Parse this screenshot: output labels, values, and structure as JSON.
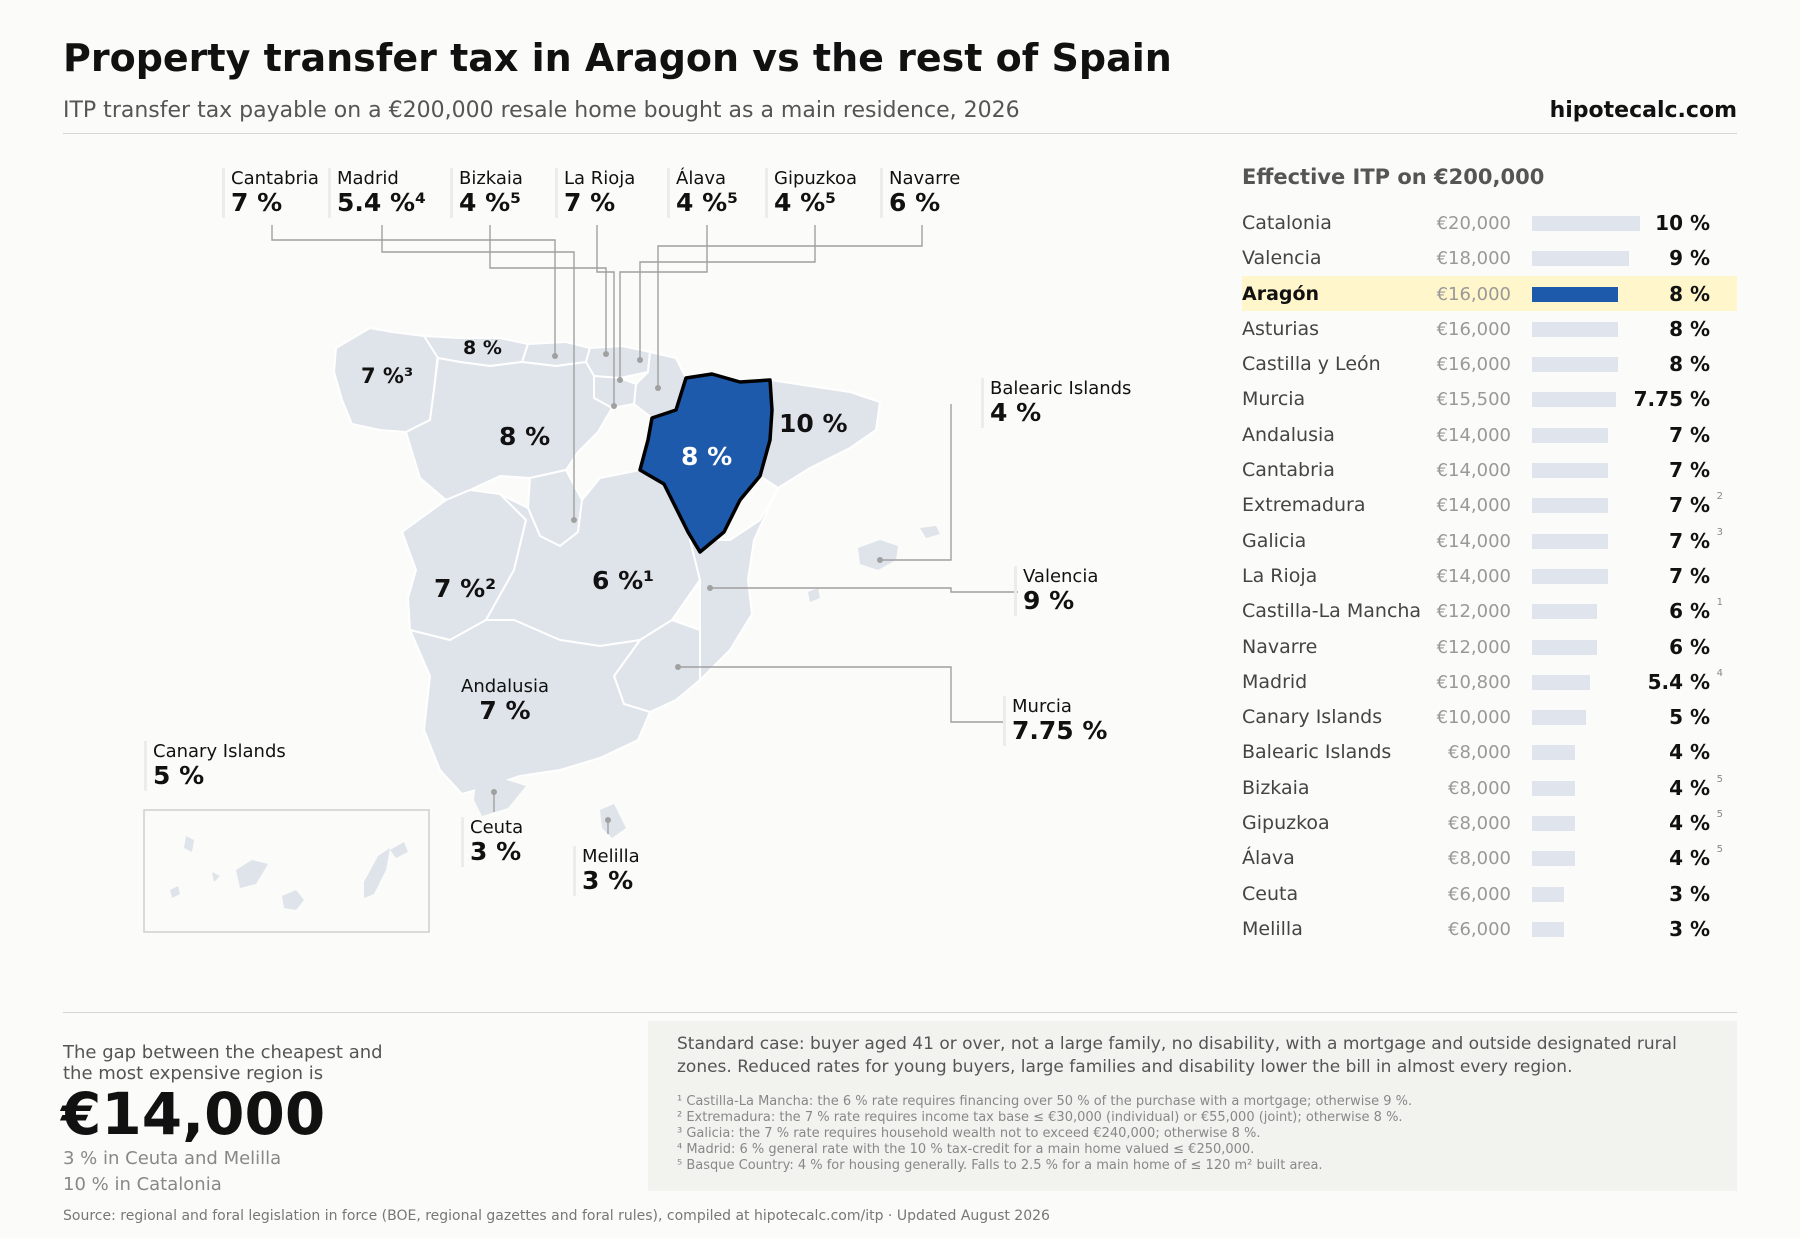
{
  "header": {
    "title": "Property transfer tax in Aragon vs the rest of Spain",
    "subtitle": "ITP transfer tax payable on a €200,000 resale home bought as a main residence, 2026",
    "brand": "hipotecalc.com"
  },
  "colors": {
    "region_fill": "#dfe3ea",
    "highlight_fill": "#1e5aab",
    "highlight_row": "#fff6cc",
    "bar": "#e0e4ec"
  },
  "map": {
    "top_callouts": [
      {
        "name": "Cantabria",
        "value": "7 %"
      },
      {
        "name": "Madrid",
        "value": "5.4 %⁴"
      },
      {
        "name": "Bizkaia",
        "value": "4 %⁵"
      },
      {
        "name": "La Rioja",
        "value": "7 %"
      },
      {
        "name": "Álava",
        "value": "4 %⁵"
      },
      {
        "name": "Gipuzkoa",
        "value": "4 %⁵"
      },
      {
        "name": "Navarre",
        "value": "6 %"
      }
    ],
    "side_callouts": {
      "balearic": {
        "name": "Balearic Islands",
        "value": "4 %"
      },
      "valencia": {
        "name": "Valencia",
        "value": "9 %"
      },
      "murcia": {
        "name": "Murcia",
        "value": "7.75 %"
      },
      "andalusia": {
        "name": "Andalusia",
        "value": "7 %"
      },
      "canary": {
        "name": "Canary Islands",
        "value": "5 %"
      },
      "ceuta": {
        "name": "Ceuta",
        "value": "3 %"
      },
      "melilla": {
        "name": "Melilla",
        "value": "3 %"
      }
    },
    "inline_labels": {
      "galicia": "7 %³",
      "asturias": "8 %",
      "castilla_leon": "8 %",
      "aragon": "8 %",
      "catalonia": "10 %",
      "extremadura": "7 %²",
      "castilla_la_mancha": "6 %¹"
    }
  },
  "list": {
    "title": "Effective ITP on €200,000",
    "max_rate": 10,
    "rows": [
      {
        "name": "Catalonia",
        "amount": "€20,000",
        "pct": "10 %",
        "rate": 10,
        "fn": ""
      },
      {
        "name": "Valencia",
        "amount": "€18,000",
        "pct": "9 %",
        "rate": 9,
        "fn": ""
      },
      {
        "name": "Aragón",
        "amount": "€16,000",
        "pct": "8 %",
        "rate": 8,
        "fn": "",
        "highlight": true
      },
      {
        "name": "Asturias",
        "amount": "€16,000",
        "pct": "8 %",
        "rate": 8,
        "fn": ""
      },
      {
        "name": "Castilla y León",
        "amount": "€16,000",
        "pct": "8 %",
        "rate": 8,
        "fn": ""
      },
      {
        "name": "Murcia",
        "amount": "€15,500",
        "pct": "7.75 %",
        "rate": 7.75,
        "fn": ""
      },
      {
        "name": "Andalusia",
        "amount": "€14,000",
        "pct": "7 %",
        "rate": 7,
        "fn": ""
      },
      {
        "name": "Cantabria",
        "amount": "€14,000",
        "pct": "7 %",
        "rate": 7,
        "fn": ""
      },
      {
        "name": "Extremadura",
        "amount": "€14,000",
        "pct": "7 %",
        "rate": 7,
        "fn": "2"
      },
      {
        "name": "Galicia",
        "amount": "€14,000",
        "pct": "7 %",
        "rate": 7,
        "fn": "3"
      },
      {
        "name": "La Rioja",
        "amount": "€14,000",
        "pct": "7 %",
        "rate": 7,
        "fn": ""
      },
      {
        "name": "Castilla-La Mancha",
        "amount": "€12,000",
        "pct": "6 %",
        "rate": 6,
        "fn": "1"
      },
      {
        "name": "Navarre",
        "amount": "€12,000",
        "pct": "6 %",
        "rate": 6,
        "fn": ""
      },
      {
        "name": "Madrid",
        "amount": "€10,800",
        "pct": "5.4 %",
        "rate": 5.4,
        "fn": "4"
      },
      {
        "name": "Canary Islands",
        "amount": "€10,000",
        "pct": "5 %",
        "rate": 5,
        "fn": ""
      },
      {
        "name": "Balearic Islands",
        "amount": "€8,000",
        "pct": "4 %",
        "rate": 4,
        "fn": ""
      },
      {
        "name": "Bizkaia",
        "amount": "€8,000",
        "pct": "4 %",
        "rate": 4,
        "fn": "5"
      },
      {
        "name": "Gipuzkoa",
        "amount": "€8,000",
        "pct": "4 %",
        "rate": 4,
        "fn": "5"
      },
      {
        "name": "Álava",
        "amount": "€8,000",
        "pct": "4 %",
        "rate": 4,
        "fn": "5"
      },
      {
        "name": "Ceuta",
        "amount": "€6,000",
        "pct": "3 %",
        "rate": 3,
        "fn": ""
      },
      {
        "name": "Melilla",
        "amount": "€6,000",
        "pct": "3 %",
        "rate": 3,
        "fn": ""
      }
    ]
  },
  "summary": {
    "intro": "The gap between the cheapest and the most expensive region is",
    "value": "€14,000",
    "low": "3 % in Ceuta and Melilla",
    "high": "10 % in Catalonia"
  },
  "notes": {
    "main": "Standard case: buyer aged 41 or over, not a large family, no disability, with a mortgage and outside designated rural zones. Reduced rates for young buyers, large families and disability lower the bill in almost every region.",
    "footnotes": [
      "¹ Castilla-La Mancha: the 6 % rate requires financing over 50 % of the purchase with a mortgage; otherwise 9 %.",
      "² Extremadura: the 7 % rate requires income tax base ≤ €30,000 (individual) or €55,000 (joint); otherwise 8 %.",
      "³ Galicia: the 7 % rate requires household wealth not to exceed €240,000; otherwise 8 %.",
      "⁴ Madrid: 6 % general rate with the 10 % tax-credit for a main home valued ≤ €250,000.",
      "⁵ Basque Country: 4 % for housing generally. Falls to 2.5 % for a main home of ≤ 120 m² built area."
    ]
  },
  "source": "Source: regional and foral legislation in force (BOE, regional gazettes and foral rules), compiled at hipotecalc.com/itp · Updated August 2026"
}
